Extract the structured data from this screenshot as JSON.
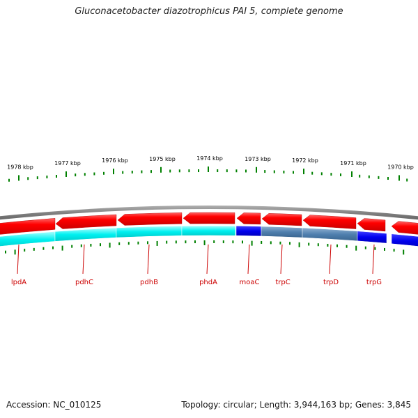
{
  "title": "Gluconacetobacter diazotrophicus PAI 5, complete genome",
  "footer": {
    "accession": "Accession: NC_010125",
    "summary": "Topology: circular; Length: 3,944,163 bp; Genes: 3,845"
  },
  "scale_labels": [
    "1978 kbp",
    "1977 kbp",
    "1976 kbp",
    "1975 kbp",
    "1974 kbp",
    "1973 kbp",
    "1972 kbp",
    "1971 kbp",
    "1970 kbp"
  ],
  "genes": [
    "lpdA",
    "pdhC",
    "pdhB",
    "phdA",
    "moaC",
    "trpC",
    "trpD",
    "trpG"
  ],
  "colors": {
    "backbone": "#808080",
    "forward_gene": "#ff0000",
    "cds_track": "#00ffff",
    "cds_alt": "#4682b4",
    "cds_blue": "#0000ff",
    "tick": "#008000",
    "label": "#cc0000"
  }
}
